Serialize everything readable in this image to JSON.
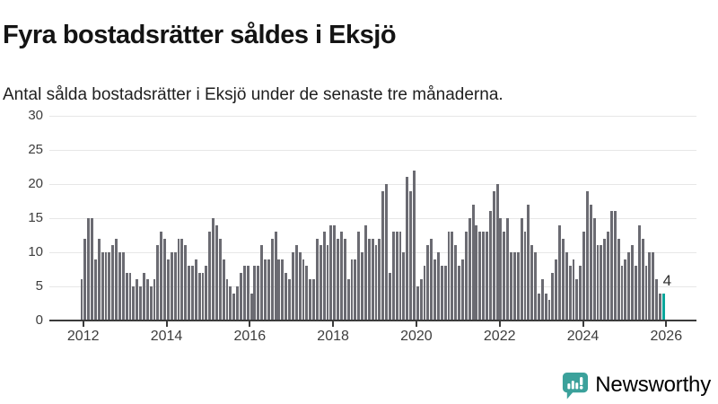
{
  "title": "Fyra bostadsrätter såldes i Eksjö",
  "subtitle": "Antal sålda bostadsrätter i Eksjö under de senaste tre månaderna.",
  "chart_data": {
    "type": "bar",
    "title": "Fyra bostadsrätter såldes i Eksjö",
    "xlabel": "",
    "ylabel": "",
    "x_range": [
      "2012",
      "2026"
    ],
    "frequency": "monthly",
    "ylim": [
      0,
      30
    ],
    "grid": true,
    "legend": "none",
    "yticks": [
      0,
      5,
      10,
      15,
      20,
      25,
      30
    ],
    "xticks": [
      "2012",
      "2014",
      "2016",
      "2018",
      "2020",
      "2022",
      "2024",
      "2026"
    ],
    "values": [
      6,
      12,
      15,
      15,
      9,
      12,
      10,
      10,
      10,
      11,
      12,
      10,
      10,
      7,
      7,
      5,
      6,
      5,
      7,
      6,
      5,
      6,
      11,
      13,
      12,
      9,
      10,
      10,
      12,
      12,
      11,
      8,
      8,
      9,
      7,
      7,
      8,
      13,
      15,
      14,
      12,
      9,
      6,
      5,
      4,
      5,
      7,
      8,
      8,
      4,
      8,
      8,
      11,
      9,
      9,
      12,
      13,
      9,
      9,
      7,
      6,
      10,
      11,
      10,
      9,
      8,
      6,
      6,
      12,
      11,
      13,
      11,
      14,
      14,
      12,
      13,
      12,
      6,
      9,
      9,
      13,
      10,
      14,
      12,
      12,
      11,
      12,
      19,
      20,
      7,
      13,
      13,
      13,
      10,
      21,
      19,
      22,
      5,
      6,
      8,
      11,
      12,
      9,
      10,
      8,
      8,
      13,
      13,
      11,
      8,
      9,
      13,
      15,
      17,
      14,
      13,
      13,
      13,
      16,
      19,
      20,
      15,
      13,
      15,
      10,
      10,
      10,
      15,
      13,
      17,
      11,
      10,
      4,
      6,
      4,
      3,
      7,
      9,
      14,
      12,
      10,
      8,
      9,
      6,
      8,
      13,
      19,
      17,
      15,
      11,
      11,
      12,
      13,
      16,
      16,
      12,
      8,
      9,
      10,
      11,
      8,
      14,
      12,
      8,
      10,
      10,
      6,
      4,
      4
    ],
    "highlight": {
      "index": 168,
      "value": 4,
      "label": "4"
    }
  },
  "colors": {
    "bar": "#6b6b72",
    "highlight": "#0aa69b",
    "grid": "#e7e7e7",
    "axis": "#3b3b3b",
    "tick_text": "#3d3d3d"
  },
  "branding": {
    "logo_text": "Newsworthy",
    "logo_color": "#3ba19b"
  }
}
